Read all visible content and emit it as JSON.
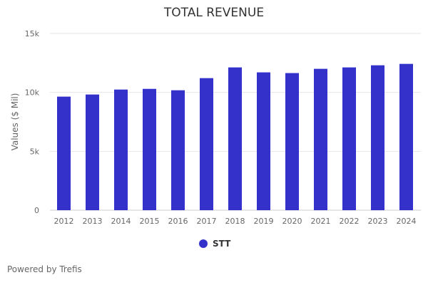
{
  "chart_data": {
    "type": "bar",
    "title": "TOTAL REVENUE",
    "xlabel": "",
    "ylabel": "Values ($ Mil)",
    "ylim": [
      0,
      15000
    ],
    "yticks": [
      0,
      5000,
      10000,
      15000
    ],
    "ytick_labels": [
      "0",
      "5k",
      "10k",
      "15k"
    ],
    "categories": [
      "2012",
      "2013",
      "2014",
      "2015",
      "2016",
      "2017",
      "2018",
      "2019",
      "2020",
      "2021",
      "2022",
      "2023",
      "2024"
    ],
    "series": [
      {
        "name": "STT",
        "color": "#3431cb",
        "values": [
          9640,
          9820,
          10240,
          10300,
          10180,
          11210,
          12120,
          11700,
          11640,
          12000,
          12120,
          12300,
          12420
        ]
      }
    ],
    "grid": true,
    "legend": "bottom-center"
  },
  "credit": "Powered by Trefis"
}
